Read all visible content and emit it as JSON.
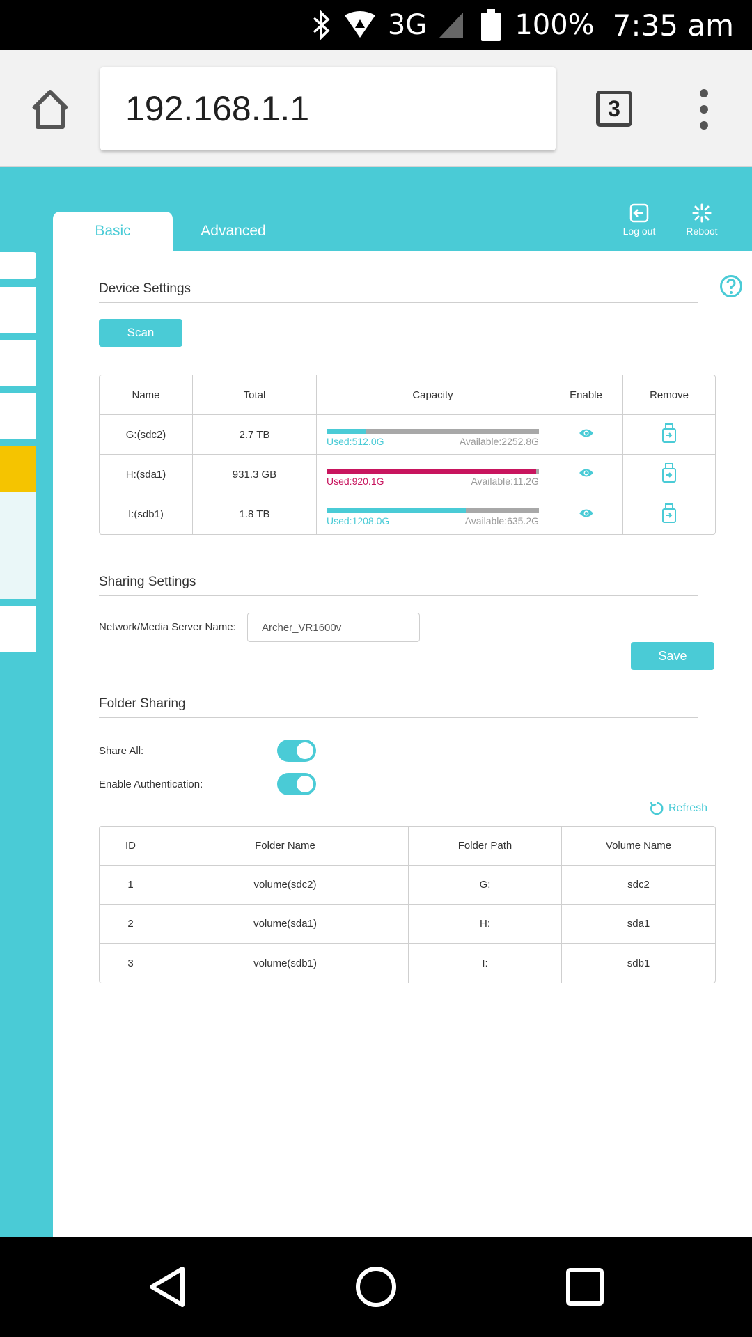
{
  "status_bar": {
    "icons": [
      "bluetooth-icon",
      "wifi-icon",
      "signal-icon",
      "battery-icon"
    ],
    "network": "3G",
    "battery": "100%",
    "time": "7:35 am"
  },
  "browser": {
    "url": "192.168.1.1",
    "tab_count": "3"
  },
  "app": {
    "accent_color": "#4acbd6",
    "tabs": [
      {
        "label": "Basic",
        "active": true
      },
      {
        "label": "Advanced",
        "active": false
      }
    ],
    "actions": {
      "logout": "Log out",
      "reboot": "Reboot"
    }
  },
  "device_settings": {
    "title": "Device Settings",
    "scan_label": "Scan",
    "headers": [
      "Name",
      "Total",
      "Capacity",
      "Enable",
      "Remove"
    ],
    "rows": [
      {
        "name": "G:(sdc2)",
        "total": "2.7 TB",
        "used": "Used:512.0G",
        "available": "Available:2252.8G",
        "used_fraction": 0.185,
        "color": "#4acbd6"
      },
      {
        "name": "H:(sda1)",
        "total": "931.3 GB",
        "used": "Used:920.1G",
        "available": "Available:11.2G",
        "used_fraction": 0.988,
        "color": "#c8155e"
      },
      {
        "name": "I:(sdb1)",
        "total": "1.8 TB",
        "used": "Used:1208.0G",
        "available": "Available:635.2G",
        "used_fraction": 0.655,
        "color": "#4acbd6"
      }
    ]
  },
  "sharing_settings": {
    "title": "Sharing Settings",
    "server_label": "Network/Media Server Name:",
    "server_value": "Archer_VR1600v",
    "save_label": "Save"
  },
  "folder_sharing": {
    "title": "Folder Sharing",
    "share_all_label": "Share All:",
    "share_all_on": true,
    "auth_label": "Enable Authentication:",
    "auth_on": true,
    "refresh_label": "Refresh",
    "headers": [
      "ID",
      "Folder Name",
      "Folder Path",
      "Volume Name"
    ],
    "rows": [
      {
        "id": "1",
        "folder": "volume(sdc2)",
        "path": "G:",
        "volume": "sdc2"
      },
      {
        "id": "2",
        "folder": "volume(sda1)",
        "path": "H:",
        "volume": "sda1"
      },
      {
        "id": "3",
        "folder": "volume(sdb1)",
        "path": "I:",
        "volume": "sdb1"
      }
    ]
  }
}
